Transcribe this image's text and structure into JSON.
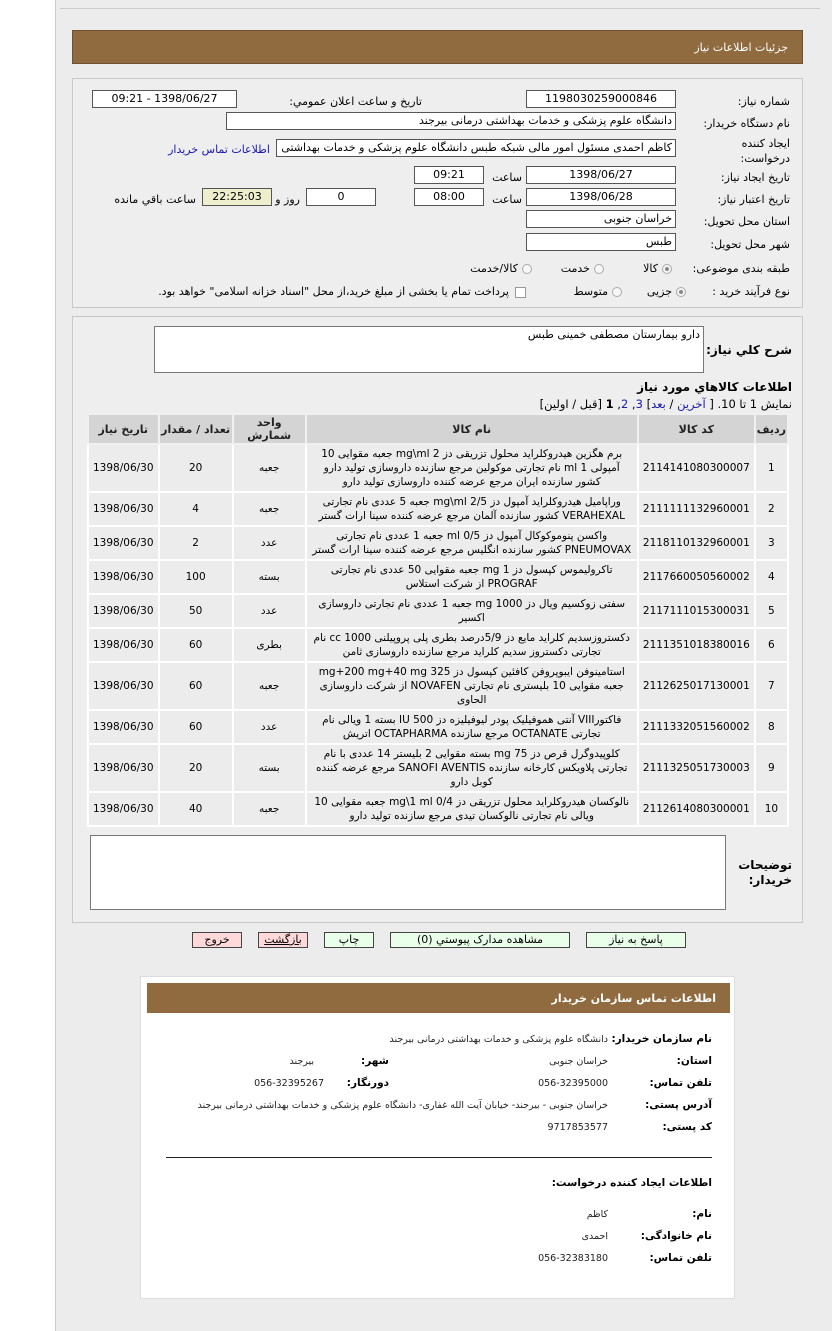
{
  "header": {
    "title": "جزئيات اطلاعات نياز"
  },
  "info": {
    "need_number_label": "شماره نياز:",
    "need_number": "1198030259000846",
    "announce_label": "تاريخ و ساعت اعلان عمومي:",
    "announce_value": "1398/06/27 - 09:21",
    "buyer_label": "نام دستگاه خريدار:",
    "buyer_value": "دانشگاه علوم پزشکی و خدمات بهداشتی درمانی بیرجند",
    "creator_label": "ايجاد كننده درخواست:",
    "creator_value": "کاظم احمدی مسئول امور مالی شبکه طبس دانشگاه علوم پزشکی و خدمات بهداشتی",
    "contact_link": "اطلاعات تماس خريدار",
    "created_date_label": "تاريخ ايجاد نياز:",
    "created_date": "1398/06/27",
    "time_label": "ساعت",
    "created_time": "09:21",
    "valid_date_label": "تاريخ اعتبار نياز:",
    "valid_date": "1398/06/28",
    "valid_time": "08:00",
    "days_value": "0",
    "days_label": "روز و",
    "remaining_time": "22:25:03",
    "remaining_label": "ساعت باقي مانده",
    "province_label": "استان محل تحويل:",
    "province": "خراسان جنوبی",
    "city_label": "شهر محل تحويل:",
    "city": "طبس",
    "category_label": "طبقه بندی موضوعی:",
    "category_options": [
      "کالا",
      "خدمت",
      "کالا/خدمت"
    ],
    "category_selected": "کالا",
    "process_label": "نوع فرآیند خرید :",
    "process_options": [
      "جزیی",
      "متوسط"
    ],
    "process_selected": "جزیی",
    "payment_note": "پرداخت تمام یا بخشی از مبلغ خرید،از محل \"اسناد خزانه اسلامی\" خواهد بود."
  },
  "description": {
    "label": "شرح كلي نياز:",
    "value": "دارو بیمارستان مصطفی خمینی طبس"
  },
  "items": {
    "title": "اطلاعات كالاهاي مورد نياز",
    "pagination": {
      "prefix": "نمايش 1 تا 10. [",
      "last": "آخرين",
      "sep": " / ",
      "next": "بعد",
      "close": "]",
      "p3": "3",
      "p2": "2",
      "p1": "1",
      "suffix": "[قبل / اولين]"
    },
    "columns": [
      "رديف",
      "كد كالا",
      "نام كالا",
      "واحد شمارش",
      "تعداد / مقدار",
      "تاريخ نياز"
    ],
    "rows": [
      {
        "n": "1",
        "code": "2114141080300007",
        "name": "برم هگزین هیدروکلراید محلول تزریقی دز 2 mg\\ml جعبه مقوایی 10 آمپولی 1 ml نام تجارتی موکولین مرجع سازنده داروسازی تولید دارو کشور سازنده ایران مرجع عرضه کننده داروسازی تولید دارو",
        "unit": "جعبه",
        "qty": "20",
        "date": "1398/06/30"
      },
      {
        "n": "2",
        "code": "2111111132960001",
        "name": "وراپامیل هیدروکلراید آمپول دز 2/5 mg\\ml جعبه 5 عددی نام تجارتی VERAHEXAL کشور سازنده آلمان مرجع عرضه کننده سینا ارات گستر",
        "unit": "جعبه",
        "qty": "4",
        "date": "1398/06/30"
      },
      {
        "n": "3",
        "code": "2118110132960001",
        "name": "واکسن پنوموکوکال آمپول دز 0/5 ml جعبه 1 عددی نام تجارتی PNEUMOVAX کشور سازنده انگلیس مرجع عرضه کننده سینا ارات گستر",
        "unit": "عدد",
        "qty": "2",
        "date": "1398/06/30"
      },
      {
        "n": "4",
        "code": "2117660050560002",
        "name": "تاکرولیموس کپسول دز 1 mg جعبه مقوایی 50 عددی نام تجارتی PROGRAF از شرکت استلاس",
        "unit": "بسته",
        "qty": "100",
        "date": "1398/06/30"
      },
      {
        "n": "5",
        "code": "2117111015300031",
        "name": "سفتی زوکسیم ویال دز 1000 mg جعبه 1 عددی نام تجارتی داروسازی اکسیر",
        "unit": "عدد",
        "qty": "50",
        "date": "1398/06/30"
      },
      {
        "n": "6",
        "code": "2111351018380016",
        "name": "دکستروزسدیم کلراید مایع دز 5/9درصد بطری پلی پروپیلنی 1000 cc نام تجارتی دکستروز سدیم کلراید مرجع سازنده داروسازی ثامن",
        "unit": "بطری",
        "qty": "60",
        "date": "1398/06/30"
      },
      {
        "n": "7",
        "code": "2112625017130001",
        "name": "استامینوفن ایبوپروفن کافئین کپسول دز 325 mg+200 mg+40 mg جعبه مقوایی 10 بلیستری نام تجارتی NOVAFEN از شرکت داروسازی الحاوی",
        "unit": "جعبه",
        "qty": "60",
        "date": "1398/06/30"
      },
      {
        "n": "8",
        "code": "2111332051560002",
        "name": "فاکتورVIII آنتی هموفیلیک پودر لیوفیلیزه دز 500 IU بسته 1 ویالی نام تجارتی OCTANATE مرجع سازنده OCTAPHARMA اتریش",
        "unit": "عدد",
        "qty": "60",
        "date": "1398/06/30"
      },
      {
        "n": "9",
        "code": "2111325051730003",
        "name": "کلوپیدوگرل قرص دز 75 mg بسته مقوایی 2 بلیستر 14 عددی با نام تجارتی پلاویکس کارخانه سازنده SANOFI AVENTIS مرجع عرضه کننده کوبل دارو",
        "unit": "بسته",
        "qty": "20",
        "date": "1398/06/30"
      },
      {
        "n": "10",
        "code": "2112614080300001",
        "name": "نالوکسان هیدروکلراید محلول تزریقی دز 0/4 mg\\1 ml جعبه مقوایی 10 ویالی نام تجارتی نالوکسان تیدی مرجع سازنده تولید دارو",
        "unit": "جعبه",
        "qty": "40",
        "date": "1398/06/30"
      }
    ]
  },
  "notes": {
    "label": "توضيحات خريدار:",
    "value": ""
  },
  "buttons": {
    "reply": "پاسخ به نياز",
    "attachments": "مشاهده مدارک پيوستي (0)",
    "print": "چاپ",
    "back": "بازگشت",
    "exit": "خروج"
  },
  "contact": {
    "title": "اطلاعات تماس سازمان خريدار",
    "org_label": "نام سازمان خريدار:",
    "org": "دانشگاه علوم پزشکی و خدمات بهداشتی درمانی بیرجند",
    "province_label": "استان:",
    "province": "خراسان جنوبی",
    "city_label": "شهر:",
    "city": "بیرجند",
    "phone_label": "تلفن تماس:",
    "phone": "056-32395000",
    "fax_label": "دورنگار:",
    "fax": "056-32395267",
    "address_label": "آدرس پستی:",
    "address": "خراسان جنوبی - بیرجند- خیابان آیت الله غفاری- دانشگاه علوم پزشکی و خدمات بهداشتی درمانی بیرجند",
    "postal_label": "کد پستی:",
    "postal": "9717853577",
    "creator_title": "اطلاعات ایجاد کننده درخواست:",
    "name_label": "نام:",
    "name": "کاظم",
    "family_label": "نام خانوادگی:",
    "family": "احمدی",
    "cphone_label": "تلفن تماس:",
    "cphone": "056-32383180"
  },
  "colors": {
    "header_brown": "#8f6b3f",
    "link": "#1a1ab0",
    "button_green": "#eaffea",
    "button_red": "#ffd9d9",
    "remaining_bg": "#eeeecc"
  }
}
